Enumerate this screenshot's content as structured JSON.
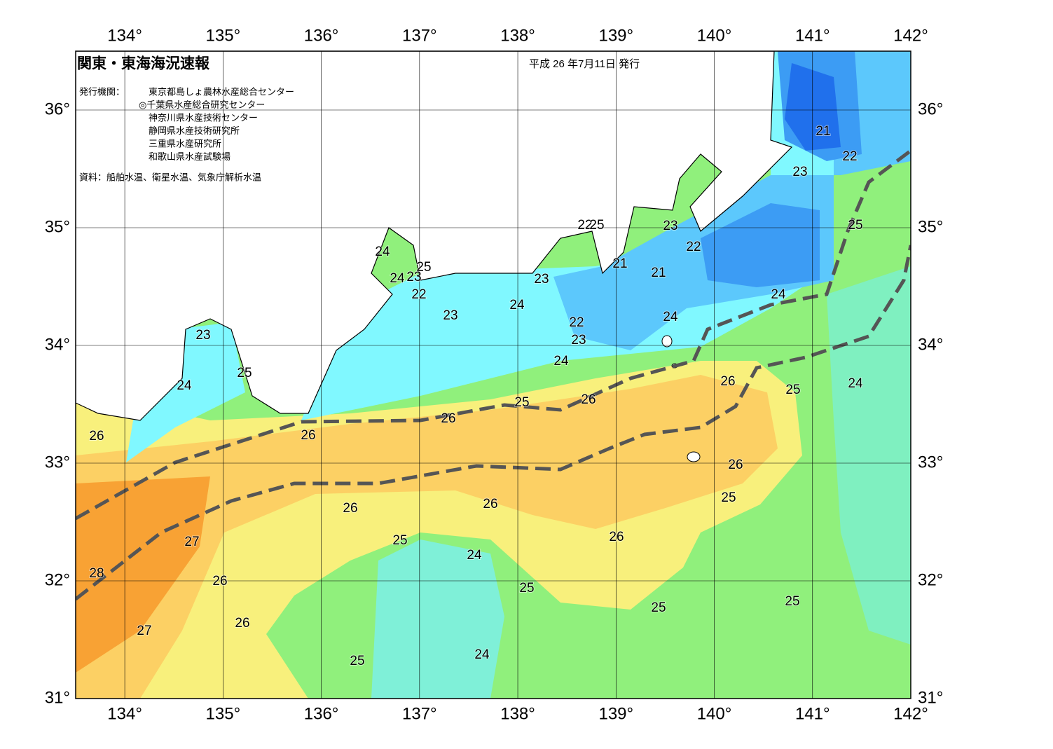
{
  "header": {
    "title": "関東・東海海況速報",
    "date": "平成 26 年7月11日 発行",
    "agencies_label": "発行機関：",
    "agencies": [
      "東京都島しょ農林水産総合センター",
      "◎千葉県水産総合研究センター",
      "神奈川県水産技術センター",
      "静岡県水産技術研究所",
      "三重県水産研究所",
      "和歌山県水産試験場"
    ],
    "source": "資料：船舶水温、衛星水温、気象庁解析水温"
  },
  "map": {
    "xlim": [
      133.5,
      142
    ],
    "ylim": [
      31,
      36.5
    ],
    "xticks": [
      {
        "value": 134,
        "label": "134°"
      },
      {
        "value": 135,
        "label": "135°"
      },
      {
        "value": 136,
        "label": "136°"
      },
      {
        "value": 137,
        "label": "137°"
      },
      {
        "value": 138,
        "label": "138°"
      },
      {
        "value": 139,
        "label": "139°"
      },
      {
        "value": 140,
        "label": "140°"
      },
      {
        "value": 141,
        "label": "141°"
      },
      {
        "value": 142,
        "label": "142°"
      }
    ],
    "yticks": [
      {
        "value": 31,
        "label": "31°"
      },
      {
        "value": 32,
        "label": "32°"
      },
      {
        "value": 33,
        "label": "33°"
      },
      {
        "value": 34,
        "label": "34°"
      },
      {
        "value": 35,
        "label": "35°"
      },
      {
        "value": 36,
        "label": "36°"
      }
    ],
    "contour_labels": [
      21,
      22,
      23,
      25,
      22,
      25,
      23,
      22,
      24,
      25,
      21,
      21,
      24,
      23,
      23,
      22,
      24,
      24,
      23,
      24,
      22,
      23,
      23,
      24,
      25,
      26,
      24,
      25,
      24,
      26,
      25,
      26,
      26,
      26,
      26,
      25,
      26,
      26,
      25,
      27,
      26,
      24,
      28,
      26,
      25,
      25,
      25,
      26,
      27,
      25,
      24
    ]
  }
}
